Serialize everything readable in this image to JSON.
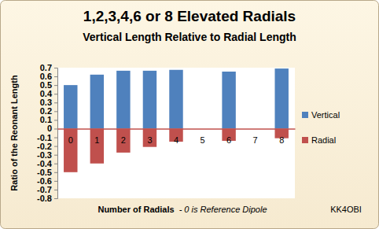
{
  "chart_data": {
    "type": "bar",
    "title": "1,2,3,4,6 or 8 Elevated Radials",
    "subtitle": "Vertical Length Relative to Radial Length",
    "y_label": "Ratio of the Reonant Length",
    "x_label": "Number of Radials",
    "x_label_note": "- 0 is Reference Dipole",
    "annotations": [
      "KK4OBI"
    ],
    "categories": [
      "0",
      "1",
      "2",
      "3",
      "4",
      "5",
      "6",
      "7",
      "8"
    ],
    "series": [
      {
        "name": "Vertical",
        "color": "#4f81bd",
        "values": [
          0.5,
          0.62,
          0.665,
          0.665,
          0.675,
          null,
          0.655,
          null,
          0.69
        ]
      },
      {
        "name": "Radial",
        "color": "#c0504d",
        "values": [
          -0.5,
          -0.4,
          -0.275,
          -0.21,
          -0.15,
          null,
          -0.14,
          null,
          -0.11
        ]
      }
    ],
    "ylim": [
      -0.8,
      0.7
    ],
    "yticks": [
      -0.8,
      -0.7,
      -0.6,
      -0.5,
      -0.4,
      -0.3,
      -0.2,
      -0.1,
      0,
      0.1,
      0.2,
      0.3,
      0.4,
      0.5,
      0.6,
      0.7
    ],
    "grid": false,
    "legend": "right"
  }
}
